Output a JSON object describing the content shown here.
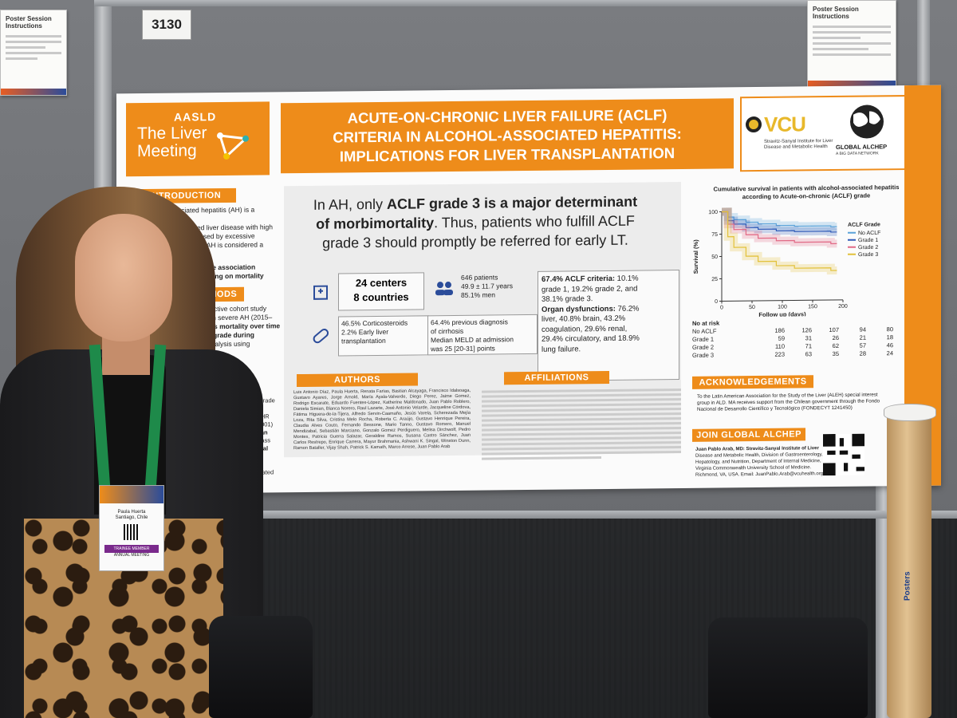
{
  "booth_number": "3130",
  "instructions_left": {
    "title": "Poster Session Instructions"
  },
  "instructions_right": {
    "title": "Poster Session Instructions"
  },
  "poster": {
    "brand_top": "AASLD",
    "brand_line1": "The Liver",
    "brand_line2": "Meeting",
    "title_line1": "ACUTE-ON-CHRONIC LIVER FAILURE (ACLF)",
    "title_line2": "CRITERIA IN ALCOHOL-ASSOCIATED HEPATITIS:",
    "title_line3": "IMPLICATIONS FOR LIVER TRANSPLANTATION",
    "vcu": "VCU",
    "vcu_sub": "Stravitz-Sanyal Institute for Liver Disease and Metabolic Health",
    "alchep": "GLOBAL ALCHEP",
    "alchep_sub": "A BIG DATA NETWORK",
    "intro_head": "INTRODUCTION",
    "intro_text_1": "cohol-associated hepatitis (AH) is a severe",
    "intro_text_2": "alcohol-associated liver disease with high",
    "intro_text_3": "and morbidity, caused by excessive",
    "intro_text_4": "nsumption. Severe AH is considered a",
    "intro_text_5": "recipitant of ACLF.",
    "intro_text_6": "m to characterize the association",
    "intro_text_7": "AH and ACLF, focusing on mortality",
    "intro_text_8": "rrent ACLF grades.",
    "methods_head": "METHODS",
    "methods_text_1": "prospective cohort study",
    "methods_text_2": "nts with severe AH (2015–",
    "methods_text_3": "me was mortality over time",
    "methods_text_4": "ACLF grade during",
    "methods_text_5": "rival analysis using",
    "results_text_1": "thout ACLF grade",
    "results_text_2": "p<0.001)",
    "results_text_3": "1), grade 2 (HR",
    "results_text_4": "R 7.44; p<0.001)",
    "results_text_5": "mortality than",
    "results_text_6": "age, body mass",
    "results_text_7": "lower survival",
    "results_text_8": "; p=0.001)",
    "results_text_9": "=0.243) and",
    "results_text_10": "re not associated",
    "results_text_11": "ithout ACLF.",
    "headline_1": "In AH, only ",
    "headline_bold": "ACLF grade 3 is a major determinant",
    "headline_2": "of morbimortality",
    "headline_3": ". Thus, patients who fulfill ACLF",
    "headline_4": "grade 3 should promptly be referred for early LT.",
    "centers": "24 centers",
    "countries": "8 countries",
    "patients": "646 patients",
    "age": "49.9 ± 11.7 years",
    "men": "85.1% men",
    "steroids": "46.5% Corticosteroids",
    "early_lt": "2.2% Early liver",
    "early_lt_2": "transplantation",
    "cirrhosis_1": "64.4% previous diagnosis",
    "cirrhosis_2": "of cirrhosis",
    "meld_1": "Median MELD at admission",
    "meld_2": "was 25 [20-31] points",
    "aclf_crit_bold": "67.4% ACLF criteria:",
    "aclf_crit_1": " 10.1%",
    "aclf_crit_2": "grade 1, 19.2% grade 2, and",
    "aclf_crit_3": "38.1% grade 3.",
    "organ_bold": "Organ dysfunctions:",
    "organ_1": " 76.2%",
    "organ_2": "liver, 40.8% brain, 43.2%",
    "organ_3": "coagulation, 29.6% renal,",
    "organ_4": "29.4% circulatory, and 18.9%",
    "organ_5": "lung failure.",
    "authors_head": "AUTHORS",
    "affiliations_head": "AFFILIATIONS",
    "ack_head": "ACKNOWLEDGEMENTS",
    "ack_text_1": "To the Latin American Association for the Study of the Liver (ALEH) special interest",
    "ack_text_2": "group in ALD. MA receives support from the Chilean government through the Fondo",
    "ack_text_3": "Nacional de Desarrollo Científico y Tecnológico (FONDECYT 1241450)",
    "join_head": "JOIN GLOBAL ALCHEP",
    "contact_1": "Juan Pablo Arab, MD: Stravitz-Sanyal Institute of Liver",
    "contact_2": "Disease and Metabolic Health, Division of Gastroenterology,",
    "contact_3": "Hepatology, and Nutrition, Department of Internal Medicine,",
    "contact_4": "Virginia Commonwealth University School of Medicine.",
    "contact_5": "Richmond, VA, USA. Email: JuanPablo.Arab@vcuhealth.org",
    "authors_text": "Luis Antonio Díaz, Paula Huerta, Renata Farías, Bastian Alcayaga, Francisco Idalsoaga, Gustavo Ayares, Jorge Arnold, María Ayala-Valverde, Diego Perez, Jaime Gomez, Rodrigo Escarate, Eduardo Fuentes-López, Katherine Maldonado, Juan Pablo Roblero, Daniela Simian, Blanca Norero, Raul Lazarte, José Antonio Velarde, Jacqueline Córdova, Fátima Higuera-de-la-Tijera, Alfredo Servin-Caamaño, Jesús Varela, Scherezada Mejía Loza, Rita Silva, Cristina Melo Rocha, Roberta C. Araújo, Gustavo Henrique Pereira, Claudia Alves Couto, Fernando Bessone, Mario Tanno, Gustavo Romero, Manuel Mendizabal, Sebastián Marciano, Gonzalo Gomez Perdiguero, Melisa Dirchwolf, Pedro Montes, Patricia Guerra Salazar, Geraldine Ramos, Susana Castro Sánchez, Juan Carlos Restrepo, Enrique Carrera, Mayur Brahmania, Ashwani K. Singal, Winston Dunn, Ramon Bataller, Vijay Shah, Patrick S. Kamath, Marco Arrese, Juan Pablo Arab"
  },
  "chart_data": {
    "type": "line",
    "title": "Cumulative survival in patients with alcohol-associated hepatitis according to Acute-on-chronic (ACLF) grade",
    "xlabel": "Follow up (days)",
    "ylabel": "Survival (%)",
    "xlim": [
      0,
      200
    ],
    "ylim": [
      0,
      100
    ],
    "x_ticks": [
      0,
      50,
      100,
      150,
      200
    ],
    "y_ticks": [
      0,
      25,
      50,
      75,
      100
    ],
    "legend_title": "ACLF Grade",
    "legend_position": "top-right",
    "series": [
      {
        "name": "No ACLF",
        "color": "#5ba3d9",
        "x": [
          0,
          10,
          20,
          40,
          60,
          90,
          120,
          180
        ],
        "y": [
          100,
          94,
          91,
          88,
          86,
          84,
          83,
          82
        ]
      },
      {
        "name": "Grade 1",
        "color": "#2f5bb8",
        "x": [
          0,
          10,
          20,
          40,
          60,
          90,
          120,
          180
        ],
        "y": [
          100,
          90,
          86,
          82,
          80,
          78,
          77,
          76
        ]
      },
      {
        "name": "Grade 2",
        "color": "#e16a86",
        "x": [
          0,
          10,
          20,
          40,
          60,
          90,
          120,
          180
        ],
        "y": [
          100,
          86,
          80,
          74,
          70,
          67,
          65,
          63
        ]
      },
      {
        "name": "Grade 3",
        "color": "#e2c13a",
        "x": [
          0,
          10,
          20,
          40,
          60,
          90,
          120,
          180
        ],
        "y": [
          100,
          72,
          60,
          50,
          44,
          39,
          36,
          33
        ]
      }
    ],
    "risk_table": {
      "title": "No at risk",
      "rows": [
        {
          "label": "No ACLF",
          "values": [
            186,
            126,
            107,
            94,
            80
          ]
        },
        {
          "label": "Grade 1",
          "values": [
            59,
            31,
            26,
            21,
            18
          ]
        },
        {
          "label": "Grade 2",
          "values": [
            110,
            71,
            62,
            57,
            46
          ]
        },
        {
          "label": "Grade 3",
          "values": [
            223,
            63,
            35,
            28,
            24
          ]
        }
      ]
    }
  },
  "badge": {
    "name": "Paula Huerta",
    "city": "Santiago, Chile",
    "role": "TRAINEE MEMBER",
    "role2": "ANNUAL MEETING"
  },
  "tube_label": "Posters"
}
